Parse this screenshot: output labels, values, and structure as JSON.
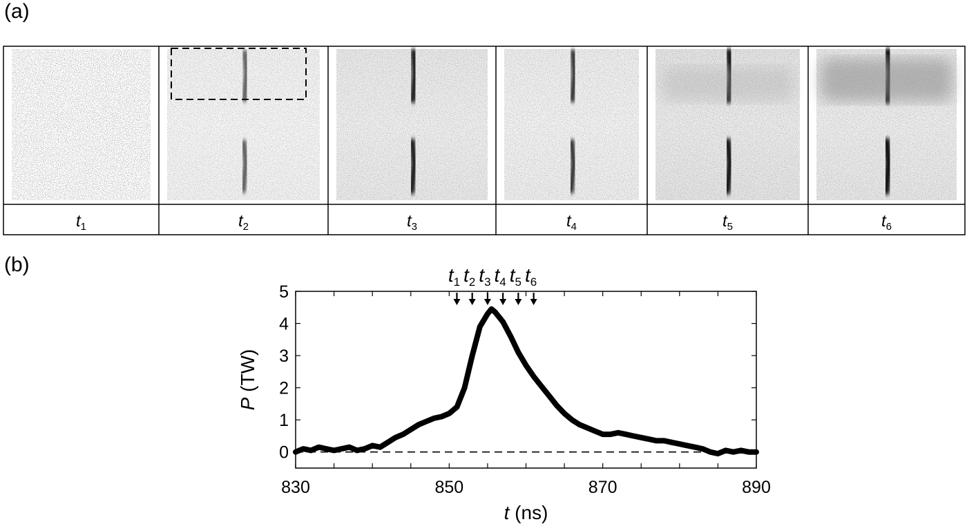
{
  "panel_a": {
    "label": "(a)",
    "frames": [
      {
        "label": "t",
        "sub": "1"
      },
      {
        "label": "t",
        "sub": "2"
      },
      {
        "label": "t",
        "sub": "3"
      },
      {
        "label": "t",
        "sub": "4"
      },
      {
        "label": "t",
        "sub": "5"
      },
      {
        "label": "t",
        "sub": "6"
      }
    ]
  },
  "panel_b": {
    "label": "(b)"
  },
  "chart_data": {
    "type": "line",
    "xlabel_var": "t",
    "xlabel_unit": "(ns)",
    "ylabel_var": "P",
    "ylabel_unit": "(TW)",
    "xlim": [
      830,
      890
    ],
    "ylim": [
      -0.5,
      5
    ],
    "xticks": [
      830,
      850,
      870,
      890
    ],
    "yticks": [
      0,
      1,
      2,
      3,
      4,
      5
    ],
    "baseline": 0,
    "series": [
      {
        "x": [
          830,
          831,
          832,
          833,
          834,
          835,
          836,
          837,
          838,
          839,
          840,
          841,
          842,
          843,
          844,
          845,
          846,
          847,
          848,
          849,
          850,
          851,
          852,
          853,
          854,
          855,
          855.5,
          856,
          857,
          858,
          859,
          860,
          861,
          862,
          863,
          864,
          865,
          866,
          867,
          868,
          869,
          870,
          871,
          872,
          873,
          874,
          875,
          876,
          877,
          878,
          879,
          880,
          881,
          882,
          883,
          884,
          885,
          886,
          887,
          888,
          889,
          890
        ],
        "y": [
          0.0,
          0.1,
          0.05,
          0.15,
          0.1,
          0.05,
          0.1,
          0.15,
          0.05,
          0.1,
          0.2,
          0.15,
          0.3,
          0.45,
          0.55,
          0.7,
          0.85,
          0.95,
          1.05,
          1.1,
          1.2,
          1.4,
          2.0,
          3.0,
          3.9,
          4.3,
          4.45,
          4.35,
          4.05,
          3.6,
          3.1,
          2.7,
          2.35,
          2.05,
          1.75,
          1.45,
          1.2,
          1.0,
          0.85,
          0.75,
          0.65,
          0.55,
          0.55,
          0.6,
          0.55,
          0.5,
          0.45,
          0.4,
          0.35,
          0.35,
          0.3,
          0.25,
          0.2,
          0.15,
          0.1,
          0.0,
          -0.05,
          0.05,
          0.0,
          0.05,
          0.0,
          0.0
        ]
      }
    ],
    "time_markers": [
      {
        "label": "t",
        "sub": "1",
        "x": 851
      },
      {
        "label": "t",
        "sub": "2",
        "x": 853
      },
      {
        "label": "t",
        "sub": "3",
        "x": 855
      },
      {
        "label": "t",
        "sub": "4",
        "x": 857
      },
      {
        "label": "t",
        "sub": "5",
        "x": 859
      },
      {
        "label": "t",
        "sub": "6",
        "x": 861
      }
    ]
  }
}
